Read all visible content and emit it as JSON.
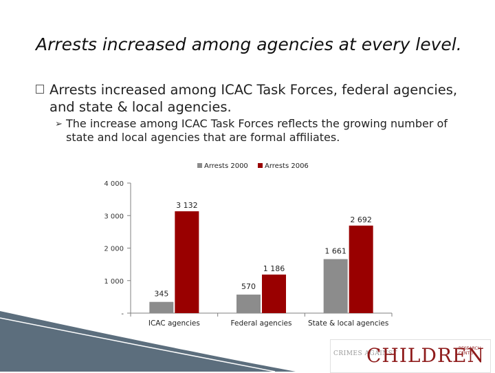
{
  "slide": {
    "title": "Arrests increased among agencies at every level.",
    "bullet1": "Arrests increased among ICAC Task Forces, federal agencies, and state & local agencies.",
    "bullet2": "The increase among ICAC Task Forces reflects the growing number of state and local agencies that are formal affiliates."
  },
  "logo": {
    "small_text": "CRIMES AGAINST",
    "main_text": "CHILDREN",
    "tag_text": "RESEARCH CENTER"
  },
  "colors": {
    "series_2000": "#8c8c8c",
    "series_2006": "#990000",
    "axis": "#7f7f7f",
    "decor_wave": "#3f5566"
  },
  "chart_data": {
    "type": "bar",
    "categories": [
      "ICAC agencies",
      "Federal agencies",
      "State & local agencies"
    ],
    "series": [
      {
        "name": "Arrests 2000",
        "values": [
          345,
          570,
          1661
        ],
        "labels": [
          "345",
          "570",
          "1 661"
        ]
      },
      {
        "name": "Arrests 2006",
        "values": [
          3132,
          1186,
          2692
        ],
        "labels": [
          "3 132",
          "1 186",
          "2 692"
        ]
      }
    ],
    "yticks": [
      0,
      1000,
      2000,
      3000,
      4000
    ],
    "ytick_labels": [
      "-",
      "1 000",
      "2 000",
      "3 000",
      "4 000"
    ],
    "ylim": [
      0,
      4000
    ],
    "legend_position": "top",
    "grid": false
  }
}
